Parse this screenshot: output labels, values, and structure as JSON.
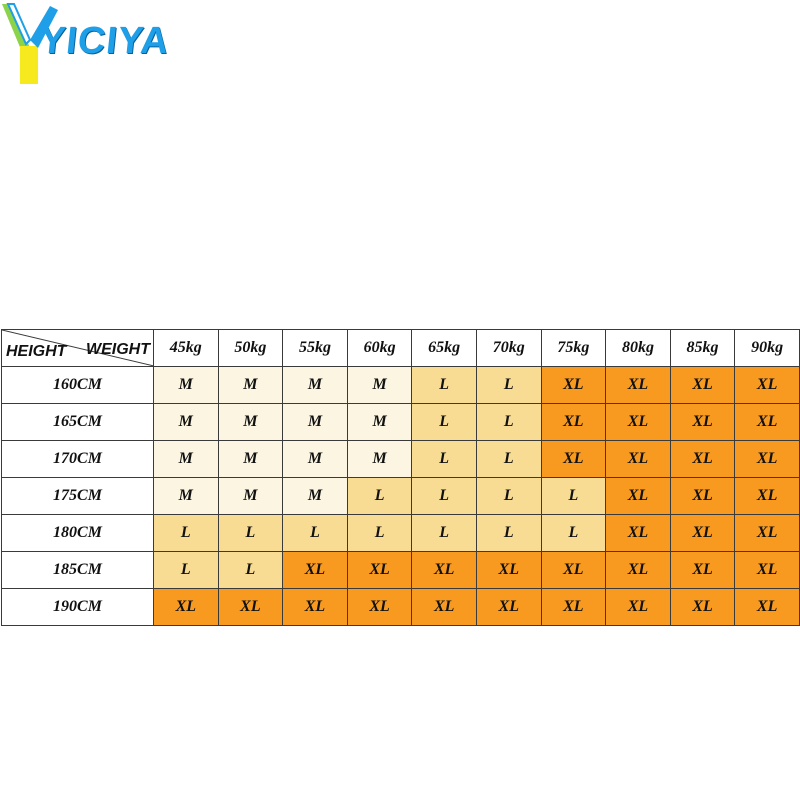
{
  "logo": {
    "text": "YICIYA",
    "colors": {
      "blue": "#1e9fe8",
      "yellow": "#f6ea1f",
      "green": "#8dd34a"
    }
  },
  "table": {
    "corner": {
      "row_label": "HEIGHT",
      "col_label": "WEIGHT"
    },
    "weights": [
      "45kg",
      "50kg",
      "55kg",
      "60kg",
      "65kg",
      "70kg",
      "75kg",
      "80kg",
      "85kg",
      "90kg"
    ],
    "rows": [
      {
        "height": "160CM",
        "sizes": [
          "M",
          "M",
          "M",
          "M",
          "L",
          "L",
          "XL",
          "XL",
          "XL",
          "XL"
        ]
      },
      {
        "height": "165CM",
        "sizes": [
          "M",
          "M",
          "M",
          "M",
          "L",
          "L",
          "XL",
          "XL",
          "XL",
          "XL"
        ]
      },
      {
        "height": "170CM",
        "sizes": [
          "M",
          "M",
          "M",
          "M",
          "L",
          "L",
          "XL",
          "XL",
          "XL",
          "XL"
        ]
      },
      {
        "height": "175CM",
        "sizes": [
          "M",
          "M",
          "M",
          "L",
          "L",
          "L",
          "L",
          "XL",
          "XL",
          "XL"
        ]
      },
      {
        "height": "180CM",
        "sizes": [
          "L",
          "L",
          "L",
          "L",
          "L",
          "L",
          "L",
          "XL",
          "XL",
          "XL"
        ]
      },
      {
        "height": "185CM",
        "sizes": [
          "L",
          "L",
          "XL",
          "XL",
          "XL",
          "XL",
          "XL",
          "XL",
          "XL",
          "XL"
        ]
      },
      {
        "height": "190CM",
        "sizes": [
          "XL",
          "XL",
          "XL",
          "XL",
          "XL",
          "XL",
          "XL",
          "XL",
          "XL",
          "XL"
        ]
      }
    ],
    "size_colors": {
      "M": "#fbf5e1",
      "L": "#f8dc93",
      "XL": "#f99a20"
    }
  }
}
